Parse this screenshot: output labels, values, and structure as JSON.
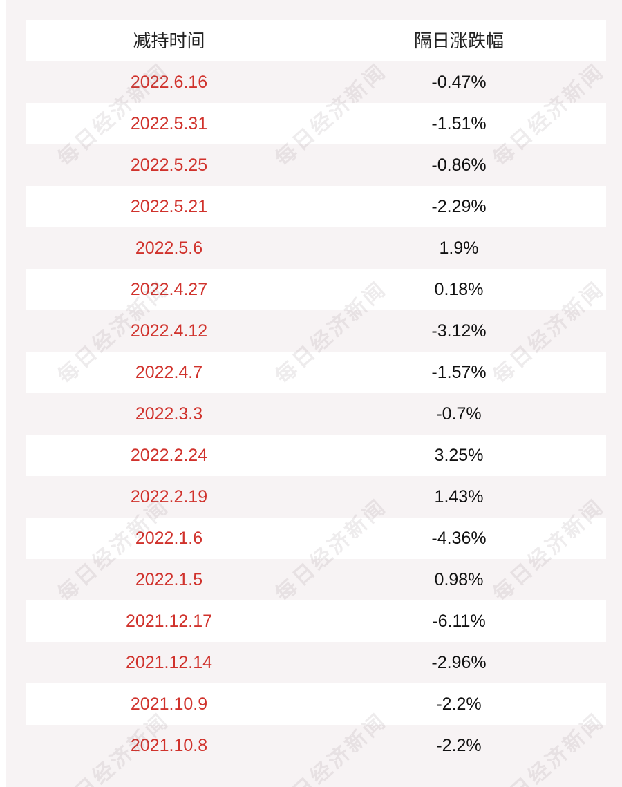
{
  "table": {
    "headers": [
      "减持时间",
      "隔日涨跌幅"
    ],
    "rows": [
      {
        "date": "2022.6.16",
        "change": "-0.47%"
      },
      {
        "date": "2022.5.31",
        "change": "-1.51%"
      },
      {
        "date": "2022.5.25",
        "change": "-0.86%"
      },
      {
        "date": "2022.5.21",
        "change": "-2.29%"
      },
      {
        "date": "2022.5.6",
        "change": "1.9%"
      },
      {
        "date": "2022.4.27",
        "change": "0.18%"
      },
      {
        "date": "2022.4.12",
        "change": "-3.12%"
      },
      {
        "date": "2022.4.7",
        "change": "-1.57%"
      },
      {
        "date": "2022.3.3",
        "change": "-0.7%"
      },
      {
        "date": "2022.2.24",
        "change": "3.25%"
      },
      {
        "date": "2022.2.19",
        "change": "1.43%"
      },
      {
        "date": "2022.1.6",
        "change": "-4.36%"
      },
      {
        "date": "2022.1.5",
        "change": "0.98%"
      },
      {
        "date": "2021.12.17",
        "change": "-6.11%"
      },
      {
        "date": "2021.12.14",
        "change": "-2.96%"
      },
      {
        "date": "2021.10.9",
        "change": "-2.2%"
      },
      {
        "date": "2021.10.8",
        "change": "-2.2%"
      }
    ]
  },
  "watermark": {
    "text": "每日经济新闻"
  },
  "colors": {
    "date_text": "#d0322c",
    "change_text": "#111111",
    "header_text": "#222222",
    "row_white": "#ffffff",
    "row_tint": "#f7f3f4"
  }
}
